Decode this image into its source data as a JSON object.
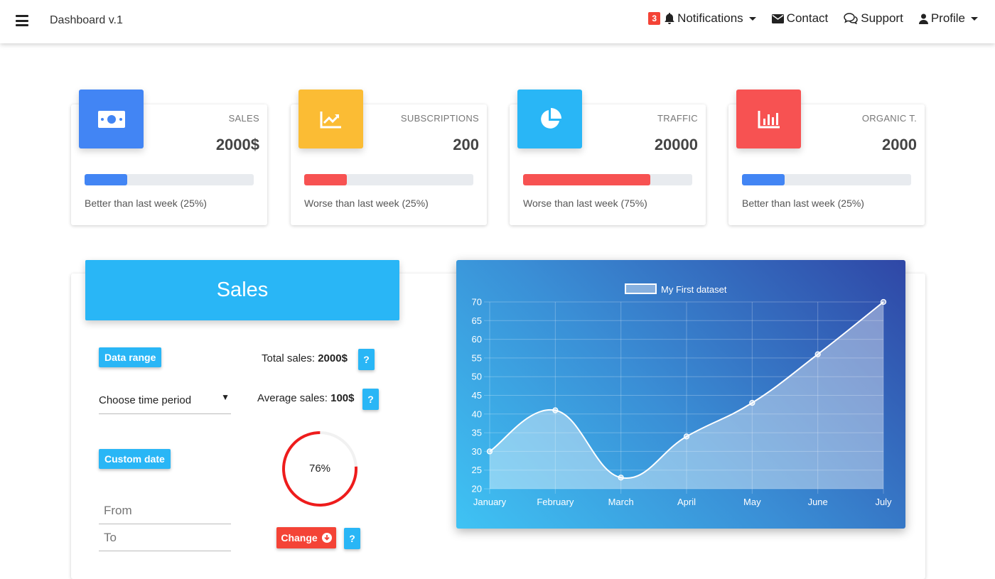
{
  "navbar": {
    "brand": "Dashboard v.1",
    "notifications": {
      "count": "3",
      "label": "Notifications"
    },
    "contact_label": "Contact",
    "support_label": "Support",
    "profile_label": "Profile"
  },
  "cards": [
    {
      "label": "SALES",
      "value": "2000$",
      "note": "Better than last week (25%)",
      "progress": 0.25,
      "color": "#4285f4",
      "bar_color": "#4285f4",
      "icon": "money-icon"
    },
    {
      "label": "SUBSCRIPTIONS",
      "value": "200",
      "note": "Worse than last week (25%)",
      "progress": 0.25,
      "color": "#fbbc34",
      "bar_color": "#f75252",
      "icon": "trending-up-icon"
    },
    {
      "label": "TRAFFIC",
      "value": "20000",
      "note": "Worse than last week (75%)",
      "progress": 0.75,
      "color": "#29b6f6",
      "bar_color": "#f75252",
      "icon": "pie-chart-icon"
    },
    {
      "label": "ORGANIC T.",
      "value": "2000",
      "note": "Better than last week (25%)",
      "progress": 0.25,
      "color": "#f75252",
      "bar_color": "#4285f4",
      "icon": "bar-chart-icon"
    }
  ],
  "sales": {
    "title": "Sales",
    "data_range_label": "Data range",
    "period_select": "Choose time period",
    "custom_date_label": "Custom date",
    "from_placeholder": "From",
    "to_placeholder": "To",
    "total_label": "Total sales: ",
    "total_value": "2000$",
    "average_label": "Average sales: ",
    "average_value": "100$",
    "help_label": "?",
    "gauge_value": 0.76,
    "gauge_text": "76%",
    "change_label": "Change"
  },
  "chart_data": {
    "type": "line",
    "categories": [
      "January",
      "February",
      "March",
      "April",
      "May",
      "June",
      "July"
    ],
    "series": [
      {
        "name": "My First dataset",
        "values": [
          30,
          41,
          23,
          34,
          43,
          56,
          70
        ]
      }
    ],
    "yticks": [
      "20",
      "25",
      "30",
      "35",
      "40",
      "45",
      "50",
      "55",
      "60",
      "65",
      "70"
    ],
    "ylim": [
      20,
      70
    ],
    "grid": true,
    "legend": "top",
    "fill": true
  }
}
